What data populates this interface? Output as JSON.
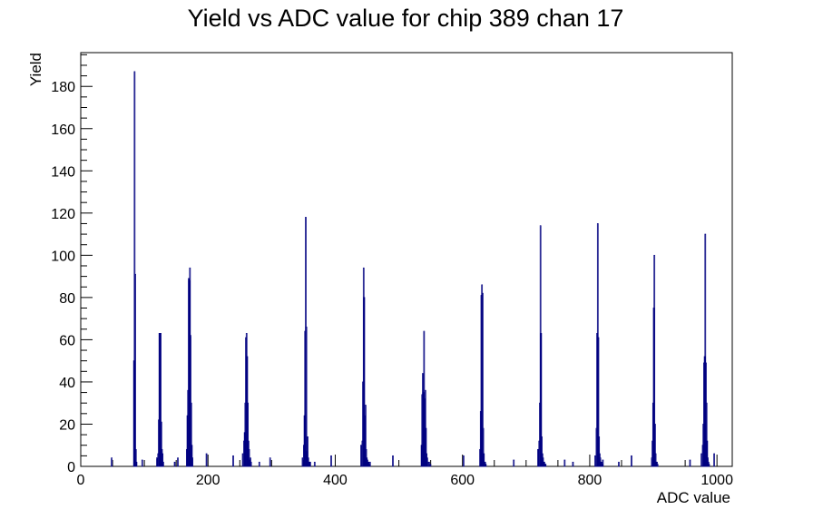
{
  "chart_data": {
    "type": "bar",
    "title": "Yield vs ADC value for chip 389 chan 17",
    "xlabel": "ADC value",
    "ylabel": "Yield",
    "xlim": [
      0,
      1024
    ],
    "ylim": [
      0,
      196
    ],
    "x_ticks": [
      0,
      200,
      400,
      600,
      800,
      1000
    ],
    "y_ticks": [
      0,
      20,
      40,
      60,
      80,
      100,
      120,
      140,
      160,
      180
    ],
    "color": "#000080",
    "grid": false,
    "series": [
      {
        "x": [
          48,
          83,
          84,
          85,
          86,
          87,
          96,
          119,
          121,
          122,
          123,
          124,
          125,
          126,
          127,
          128,
          129,
          147,
          152,
          166,
          167,
          168,
          169,
          170,
          171,
          172,
          173,
          174,
          175,
          197,
          239,
          254,
          256,
          257,
          258,
          259,
          260,
          261,
          262,
          263,
          264,
          265,
          266,
          267,
          280,
          297,
          348,
          350,
          351,
          352,
          353,
          354,
          355,
          356,
          357,
          358,
          359,
          360,
          367,
          393,
          440,
          442,
          443,
          444,
          445,
          446,
          447,
          448,
          449,
          450,
          451,
          452,
          453,
          454,
          490,
          535,
          536,
          537,
          538,
          539,
          540,
          541,
          542,
          543,
          544,
          545,
          547,
          549,
          601,
          627,
          628,
          629,
          630,
          631,
          632,
          633,
          634,
          635,
          636,
          680,
          718,
          720,
          721,
          722,
          723,
          724,
          725,
          726,
          727,
          728,
          729,
          730,
          760,
          773,
          808,
          810,
          811,
          812,
          813,
          814,
          815,
          816,
          817,
          818,
          819,
          820,
          845,
          865,
          897,
          898,
          899,
          900,
          901,
          902,
          903,
          904,
          905,
          906,
          957,
          975,
          977,
          978,
          979,
          980,
          981,
          982,
          983,
          984,
          985,
          986,
          987,
          995
        ],
        "values": [
          4,
          50,
          187,
          91,
          8,
          2,
          3,
          4,
          6,
          22,
          63,
          63,
          63,
          21,
          8,
          6,
          2,
          2,
          4,
          8,
          24,
          36,
          89,
          88,
          94,
          62,
          30,
          10,
          4,
          6,
          5,
          6,
          12,
          16,
          30,
          61,
          63,
          52,
          30,
          12,
          8,
          3,
          4,
          2,
          2,
          4,
          4,
          10,
          24,
          64,
          118,
          66,
          7,
          14,
          4,
          2,
          2,
          2,
          2,
          5,
          10,
          12,
          40,
          94,
          80,
          24,
          29,
          8,
          4,
          3,
          2,
          2,
          1,
          2,
          5,
          10,
          34,
          44,
          35,
          64,
          32,
          36,
          18,
          6,
          4,
          2,
          2,
          1,
          5,
          8,
          26,
          81,
          86,
          82,
          18,
          6,
          2,
          2,
          1,
          3,
          8,
          12,
          30,
          114,
          63,
          14,
          6,
          4,
          2,
          2,
          1,
          1,
          3,
          2,
          5,
          18,
          63,
          115,
          61,
          14,
          6,
          4,
          2,
          2,
          1,
          3,
          2,
          5,
          4,
          12,
          30,
          75,
          100,
          20,
          6,
          2,
          2,
          1,
          3,
          6,
          10,
          20,
          49,
          52,
          110,
          49,
          30,
          12,
          4,
          2,
          1,
          6
        ]
      }
    ]
  }
}
